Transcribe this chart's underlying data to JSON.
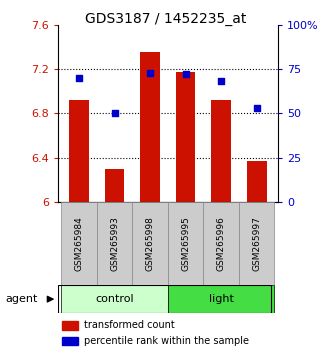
{
  "title": "GDS3187 / 1452235_at",
  "samples": [
    "GSM265984",
    "GSM265993",
    "GSM265998",
    "GSM265995",
    "GSM265996",
    "GSM265997"
  ],
  "bar_values": [
    6.92,
    6.3,
    7.35,
    7.17,
    6.92,
    6.37
  ],
  "bar_base": 6.0,
  "percentile_values": [
    70,
    50,
    73,
    72,
    68,
    53
  ],
  "bar_color": "#cc1100",
  "percentile_color": "#0000cc",
  "ylim_left": [
    6.0,
    7.6
  ],
  "ylim_right": [
    0,
    100
  ],
  "yticks_left": [
    6.0,
    6.4,
    6.8,
    7.2,
    7.6
  ],
  "ytick_labels_left": [
    "6",
    "6.4",
    "6.8",
    "7.2",
    "7.6"
  ],
  "yticks_right": [
    0,
    25,
    50,
    75,
    100
  ],
  "ytick_labels_right": [
    "0",
    "25",
    "50",
    "75",
    "100%"
  ],
  "groups": [
    {
      "label": "control",
      "indices": [
        0,
        1,
        2
      ],
      "color": "#ccffcc"
    },
    {
      "label": "light",
      "indices": [
        3,
        4,
        5
      ],
      "color": "#44dd44"
    }
  ],
  "legend_items": [
    {
      "label": "transformed count",
      "color": "#cc1100"
    },
    {
      "label": "percentile rank within the sample",
      "color": "#0000cc"
    }
  ],
  "bar_width": 0.55,
  "tick_label_color_left": "#cc1100",
  "tick_label_color_right": "#0000cc",
  "label_fontsize": 7,
  "title_fontsize": 10
}
